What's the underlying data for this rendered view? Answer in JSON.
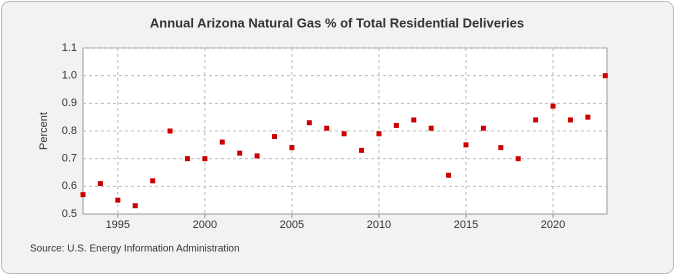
{
  "chart_data": {
    "type": "scatter",
    "title": "Annual Arizona Natural Gas % of Total Residential Deliveries",
    "y_label": "Percent",
    "source": "Source: U.S. Energy Information Administration",
    "x": [
      1993,
      1994,
      1995,
      1996,
      1997,
      1998,
      1999,
      2000,
      2001,
      2002,
      2003,
      2004,
      2005,
      2006,
      2007,
      2008,
      2009,
      2010,
      2011,
      2012,
      2013,
      2014,
      2015,
      2016,
      2017,
      2018,
      2019,
      2020,
      2021,
      2022,
      2023
    ],
    "values": [
      0.57,
      0.61,
      0.55,
      0.53,
      0.62,
      0.8,
      0.7,
      0.7,
      0.76,
      0.72,
      0.71,
      0.78,
      0.74,
      0.83,
      0.81,
      0.79,
      0.73,
      0.79,
      0.82,
      0.84,
      0.81,
      0.64,
      0.75,
      0.81,
      0.74,
      0.7,
      0.84,
      0.89,
      0.84,
      0.85,
      1.0
    ],
    "color": "#cc0000",
    "xlim": [
      1993,
      2023.1
    ],
    "xticks": [
      1995,
      2000,
      2005,
      2010,
      2015,
      2020
    ],
    "ylim": [
      0.5,
      1.1
    ],
    "yticks": [
      0.5,
      0.6,
      0.7,
      0.8,
      0.9,
      {
        "value": 1,
        "label": "1.0"
      },
      1.1
    ],
    "grid": true
  }
}
